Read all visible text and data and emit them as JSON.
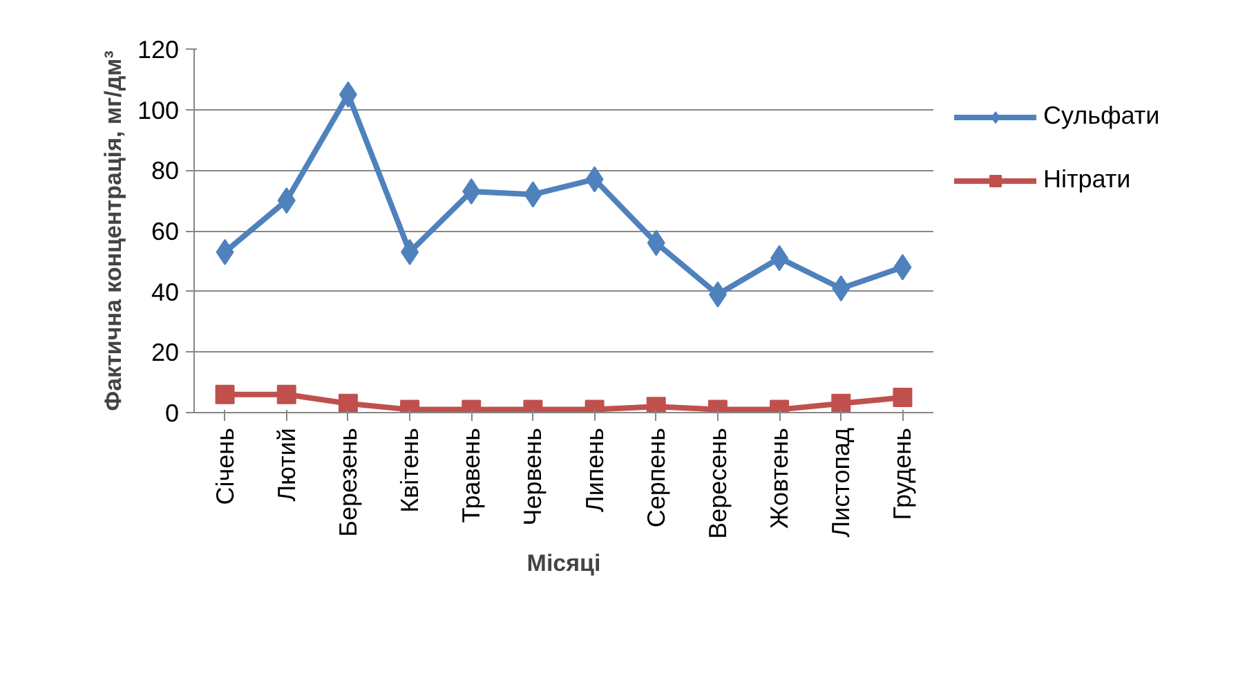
{
  "chart_data": {
    "type": "line",
    "xlabel": "Місяці",
    "ylabel": "Фактична концентрація, мг/дм³",
    "categories": [
      "Січень",
      "Лютий",
      "Березень",
      "Квітень",
      "Травень",
      "Червень",
      "Липень",
      "Серпень",
      "Вересень",
      "Жовтень",
      "Листопад",
      "Грудень"
    ],
    "series": [
      {
        "name": "Сульфати",
        "color": "#4f81bd",
        "marker": "diamond",
        "values": [
          53,
          70,
          105,
          53,
          73,
          72,
          77,
          56,
          39,
          51,
          41,
          48
        ]
      },
      {
        "name": "Нітрати",
        "color": "#c0504d",
        "marker": "square",
        "values": [
          6,
          6,
          3,
          1,
          1,
          1,
          1,
          2,
          1,
          1,
          3,
          5
        ]
      }
    ],
    "ylim": [
      0,
      120
    ],
    "yticks": [
      0,
      20,
      40,
      60,
      80,
      100,
      120
    ],
    "grid": "y",
    "legend": "right",
    "line_style": "solid"
  }
}
